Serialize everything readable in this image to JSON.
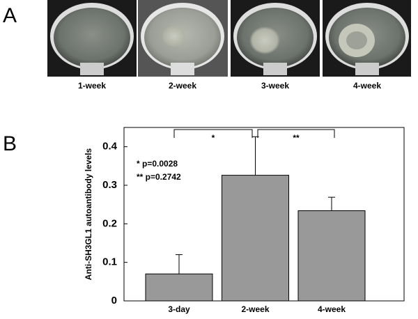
{
  "panels": {
    "a": "A",
    "b": "B"
  },
  "images": [
    {
      "caption": "1-week"
    },
    {
      "caption": "2-week"
    },
    {
      "caption": "3-week"
    },
    {
      "caption": "4-week"
    }
  ],
  "chart_data": {
    "type": "bar",
    "ylabel": "Anti-SH3GL1 autoantibody levels",
    "categories": [
      "3-day",
      "2-week",
      "4-week"
    ],
    "values": [
      0.07,
      0.326,
      0.234
    ],
    "errors": [
      0.05,
      0.1,
      0.035
    ],
    "color": "#999999",
    "ylim": [
      0,
      0.45
    ],
    "yticks": [
      0,
      0.1,
      0.2,
      0.3,
      0.4
    ],
    "significance_labels": [
      "*",
      "**"
    ],
    "notes": [
      "* p=0.0028",
      "** p=0.2742"
    ]
  }
}
